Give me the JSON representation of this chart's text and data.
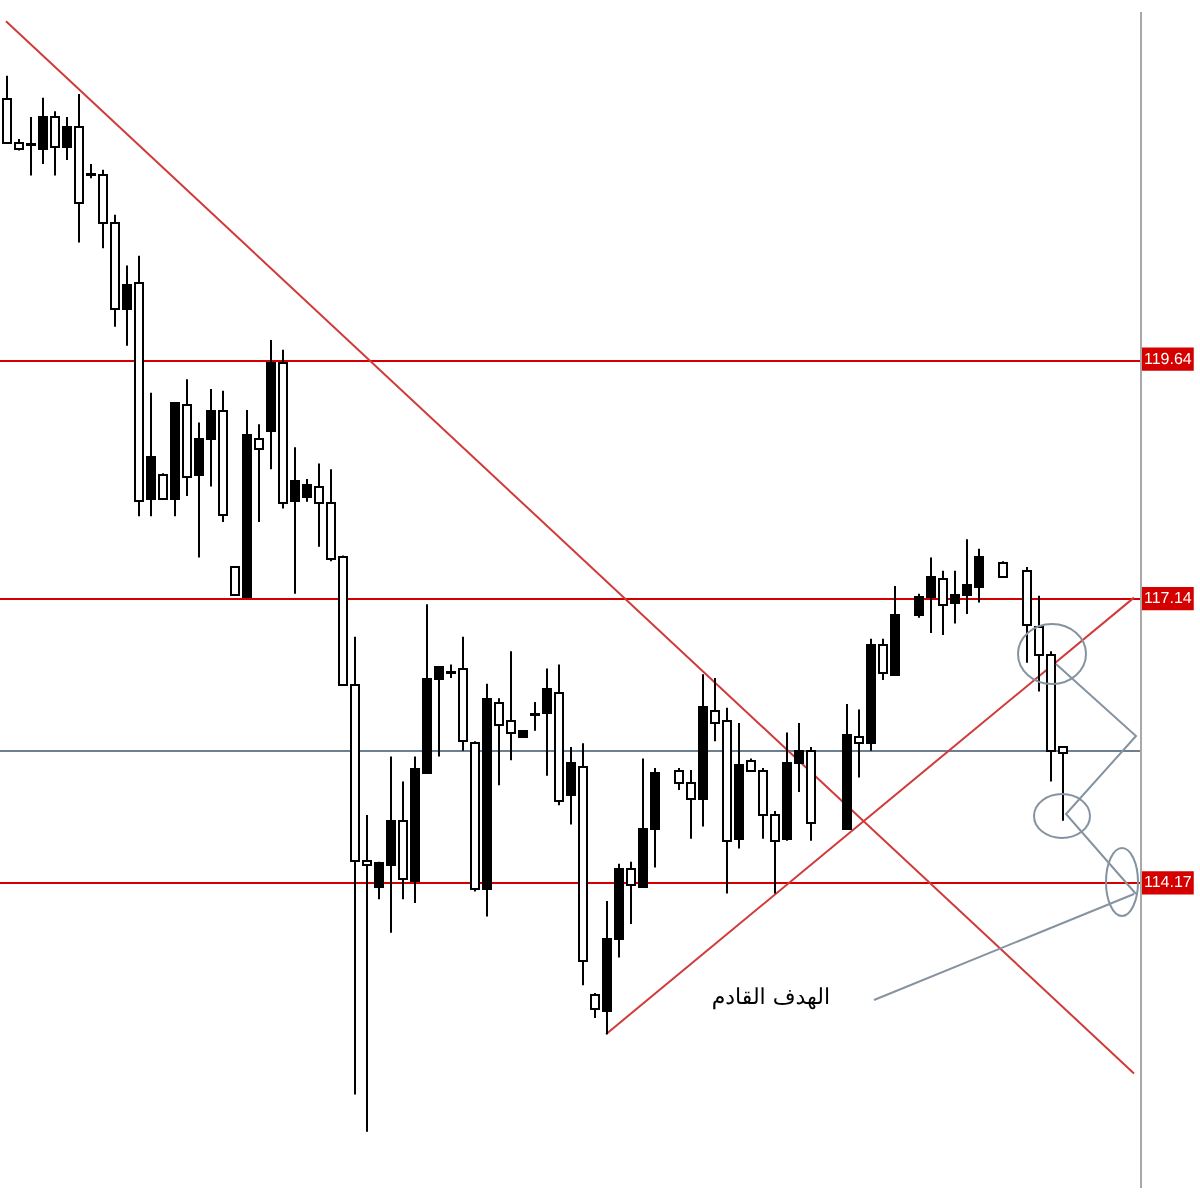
{
  "chart_data": {
    "type": "candlestick",
    "categories": [
      null,
      null,
      null,
      null,
      null,
      null,
      null,
      null,
      null,
      null,
      null,
      null,
      null,
      null,
      null,
      null,
      null,
      null,
      null,
      null,
      null,
      null,
      null,
      null,
      null,
      null,
      null,
      null,
      null,
      null,
      null,
      null,
      null,
      null,
      null,
      null,
      null,
      null,
      null,
      null,
      null,
      null,
      null,
      null,
      null,
      null,
      null,
      null,
      null,
      null,
      null,
      null,
      null,
      null,
      null,
      null,
      null,
      null,
      null,
      null,
      null,
      null,
      null,
      null,
      null,
      null,
      null,
      null,
      null,
      null,
      null,
      null,
      null,
      null,
      null,
      null,
      null,
      null,
      null,
      null,
      null,
      null,
      null,
      null,
      null,
      null,
      null,
      null,
      null,
      null,
      null,
      null,
      null,
      null,
      null
    ],
    "series": [
      {
        "color": "#000000",
        "ohlc": [
          [
            122.37,
            122.6,
            121.92,
            121.92
          ],
          [
            121.9,
            121.94,
            121.82,
            121.84
          ],
          [
            121.88,
            122.17,
            121.56,
            121.88
          ],
          [
            121.84,
            122.37,
            121.68,
            122.17
          ],
          [
            122.19,
            122.23,
            121.56,
            121.88
          ],
          [
            121.86,
            122.17,
            121.72,
            122.07
          ],
          [
            122.07,
            122.41,
            120.86,
            121.27
          ],
          [
            121.58,
            121.68,
            121.53,
            121.58
          ],
          [
            121.58,
            121.62,
            120.8,
            121.07
          ],
          [
            121.07,
            121.15,
            119.98,
            120.17
          ],
          [
            120.17,
            120.62,
            119.78,
            120.43
          ],
          [
            120.45,
            120.72,
            118.0,
            118.17
          ],
          [
            118.19,
            119.29,
            118.0,
            118.62
          ],
          [
            118.45,
            118.45,
            118.19,
            118.19
          ],
          [
            118.19,
            119.19,
            118.0,
            119.19
          ],
          [
            119.17,
            119.43,
            118.21,
            118.41
          ],
          [
            118.45,
            118.98,
            117.57,
            118.82
          ],
          [
            118.82,
            119.33,
            118.31,
            119.11
          ],
          [
            119.11,
            119.31,
            117.94,
            118.02
          ],
          [
            117.47,
            117.47,
            117.17,
            117.17
          ],
          [
            117.17,
            119.11,
            117.17,
            118.86
          ],
          [
            118.82,
            118.96,
            117.94,
            118.72
          ],
          [
            118.9,
            119.84,
            118.49,
            119.62
          ],
          [
            119.62,
            119.74,
            118.08,
            118.15
          ],
          [
            118.17,
            118.72,
            117.19,
            118.37
          ],
          [
            118.21,
            118.39,
            118.15,
            118.33
          ],
          [
            118.31,
            118.55,
            117.68,
            118.15
          ],
          [
            118.15,
            118.49,
            117.53,
            117.57
          ],
          [
            117.59,
            117.59,
            116.25,
            116.25
          ],
          [
            116.25,
            116.74,
            111.96,
            114.41
          ],
          [
            114.41,
            114.88,
            111.57,
            114.37
          ],
          [
            114.14,
            114.39,
            114.0,
            114.39
          ],
          [
            114.35,
            115.49,
            113.65,
            114.82
          ],
          [
            114.82,
            115.23,
            114.0,
            114.21
          ],
          [
            114.21,
            115.49,
            113.96,
            115.37
          ],
          [
            115.33,
            117.08,
            115.33,
            116.31
          ],
          [
            116.31,
            116.43,
            115.49,
            116.43
          ],
          [
            116.37,
            116.45,
            116.31,
            116.37
          ],
          [
            116.41,
            116.74,
            115.55,
            115.65
          ],
          [
            115.65,
            115.65,
            114.08,
            114.12
          ],
          [
            114.12,
            116.25,
            113.82,
            116.1
          ],
          [
            116.06,
            116.1,
            115.19,
            115.84
          ],
          [
            115.88,
            116.59,
            115.45,
            115.76
          ],
          [
            115.7,
            115.76,
            115.7,
            115.76
          ],
          [
            115.94,
            116.06,
            115.76,
            115.94
          ],
          [
            115.96,
            116.41,
            115.29,
            116.21
          ],
          [
            116.17,
            116.45,
            114.98,
            115.04
          ],
          [
            115.1,
            115.59,
            114.78,
            115.43
          ],
          [
            115.39,
            115.63,
            113.1,
            113.37
          ],
          [
            113.02,
            113.02,
            112.76,
            112.88
          ],
          [
            112.84,
            113.98,
            112.59,
            113.59
          ],
          [
            113.59,
            114.37,
            113.39,
            114.33
          ],
          [
            114.33,
            114.39,
            113.74,
            114.17
          ],
          [
            114.14,
            115.47,
            114.12,
            114.74
          ],
          [
            114.74,
            115.37,
            114.33,
            115.33
          ],
          null,
          [
            115.35,
            115.37,
            115.14,
            115.23
          ],
          [
            115.23,
            115.35,
            114.63,
            115.06
          ],
          [
            115.06,
            116.35,
            114.76,
            116.02
          ],
          [
            115.98,
            116.31,
            115.65,
            115.86
          ],
          [
            115.88,
            116.0,
            114.06,
            114.63
          ],
          [
            114.63,
            115.84,
            114.53,
            115.41
          ],
          [
            115.45,
            115.47,
            115.33,
            115.35
          ],
          [
            115.35,
            115.37,
            114.63,
            114.9
          ],
          [
            114.9,
            114.92,
            114.06,
            114.63
          ],
          [
            114.63,
            115.74,
            114.61,
            115.43
          ],
          [
            115.43,
            115.84,
            115.12,
            115.55
          ],
          [
            115.55,
            115.59,
            114.61,
            114.8
          ],
          null,
          null,
          [
            114.74,
            116.04,
            114.74,
            115.72
          ],
          [
            115.7,
            115.98,
            115.27,
            115.63
          ],
          [
            115.63,
            116.72,
            115.55,
            116.66
          ],
          [
            116.66,
            116.72,
            116.29,
            116.37
          ],
          [
            116.35,
            117.27,
            116.35,
            116.98
          ],
          null,
          [
            116.98,
            117.19,
            116.94,
            117.17
          ],
          [
            117.17,
            117.57,
            116.78,
            117.37
          ],
          [
            117.35,
            117.43,
            116.76,
            117.08
          ],
          [
            117.1,
            117.43,
            116.88,
            117.19
          ],
          [
            117.19,
            117.76,
            116.98,
            117.29
          ],
          [
            117.27,
            117.66,
            117.1,
            117.59
          ],
          null,
          [
            117.53,
            117.53,
            117.39,
            117.39
          ],
          null,
          [
            117.43,
            117.47,
            116.47,
            116.86
          ],
          [
            116.86,
            117.17,
            116.17,
            116.57
          ],
          [
            116.57,
            116.59,
            115.23,
            115.57
          ],
          [
            115.59,
            115.59,
            114.82,
            115.53
          ],
          null,
          null,
          null,
          null,
          null,
          null
        ]
      },
      {
        "type": "line",
        "color": "#d03a3a",
        "values": [
          123.17,
          null,
          null,
          null,
          null,
          null,
          null,
          null,
          null,
          null,
          null,
          null,
          null,
          null,
          null,
          null,
          null,
          null,
          null,
          null,
          null,
          null,
          null,
          null,
          null,
          null,
          null,
          null,
          null,
          null,
          null,
          null,
          null,
          null,
          null,
          null,
          null,
          null,
          null,
          null,
          null,
          null,
          null,
          null,
          null,
          null,
          null,
          null,
          null,
          null,
          null,
          null,
          null,
          null,
          null,
          null,
          null,
          null,
          null,
          null,
          null,
          null,
          null,
          null,
          null,
          null,
          null,
          null,
          null,
          null,
          null,
          null,
          null,
          null,
          null,
          null,
          null,
          null,
          null,
          null,
          null,
          null,
          null,
          null,
          null,
          null,
          null,
          null,
          null,
          null,
          null,
          null,
          null,
          null,
          112.18
        ]
      },
      {
        "type": "line",
        "color": "#d03a3a",
        "values": [
          null,
          null,
          null,
          null,
          null,
          null,
          null,
          null,
          null,
          null,
          null,
          null,
          null,
          null,
          null,
          null,
          null,
          null,
          null,
          null,
          null,
          null,
          null,
          null,
          null,
          null,
          null,
          null,
          null,
          null,
          null,
          null,
          null,
          null,
          null,
          null,
          null,
          null,
          null,
          null,
          null,
          null,
          null,
          null,
          null,
          null,
          null,
          null,
          null,
          null,
          112.59,
          null,
          null,
          null,
          null,
          null,
          null,
          null,
          null,
          null,
          null,
          null,
          null,
          null,
          null,
          null,
          null,
          null,
          null,
          null,
          null,
          null,
          null,
          null,
          null,
          null,
          null,
          null,
          null,
          null,
          null,
          null,
          null,
          null,
          null,
          null,
          null,
          null,
          null,
          null,
          null,
          null,
          null,
          null,
          117.15
        ]
      }
    ],
    "ylim": [
      111,
      123.25
    ],
    "yticks": [
      114.17,
      117.14,
      119.64
    ],
    "tick_labels": "y",
    "ref_lines": [
      {
        "axis": "y",
        "value": 119.64,
        "color": "#d40000"
      },
      {
        "axis": "y",
        "value": 117.14,
        "color": "#d40000"
      },
      {
        "axis": "y",
        "value": 114.17,
        "color": "#d40000"
      },
      {
        "axis": "y",
        "value": 115.55,
        "color": "#6e7f90"
      }
    ],
    "annotations": [
      "الهدف القادم"
    ]
  }
}
